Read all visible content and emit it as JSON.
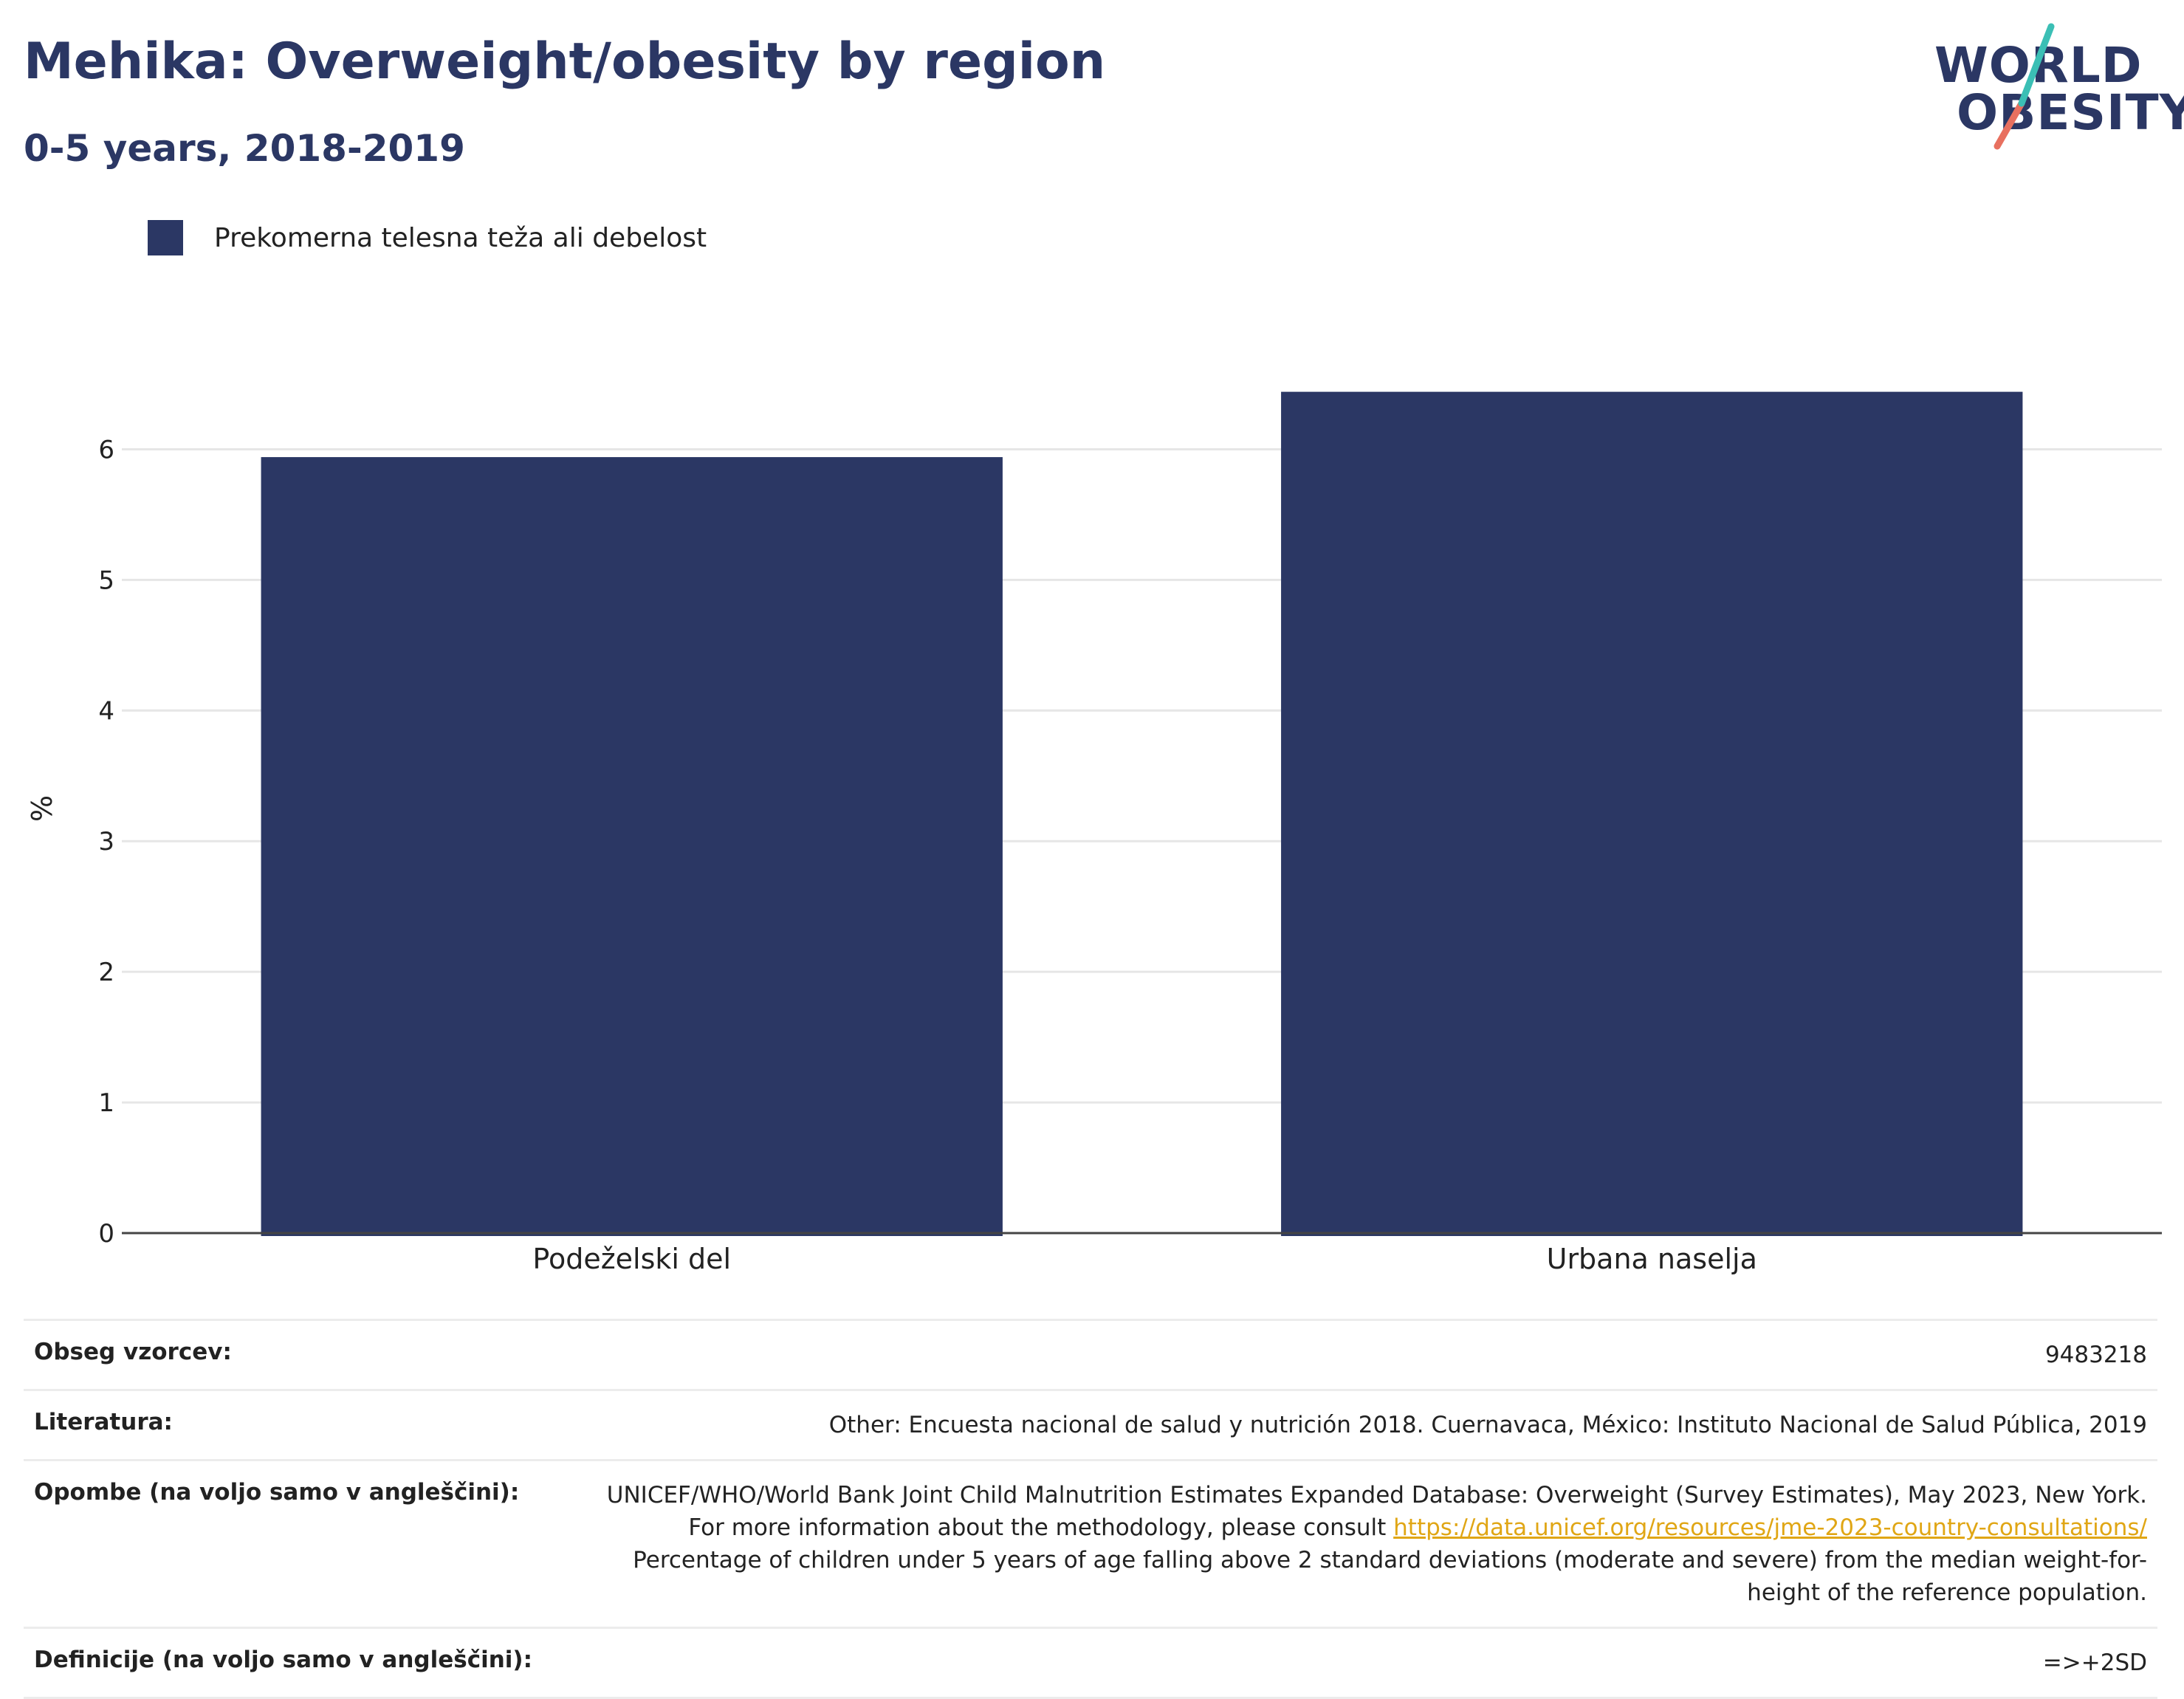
{
  "header": {
    "title": "Mehika: Overweight/obesity by region",
    "subtitle": "0-5 years, 2018-2019"
  },
  "logo": {
    "line1": "WORLD",
    "line2": "OBESITY",
    "colors": {
      "navy": "#2b3764",
      "teal": "#3bbfb5",
      "coral": "#e8705f"
    }
  },
  "legend": {
    "label": "Prekomerna telesna teža ali debelost",
    "color": "#2b3764"
  },
  "chart_data": {
    "type": "bar",
    "categories": [
      "Podeželski del",
      "Urbana naselja"
    ],
    "series": [
      {
        "name": "Prekomerna telesna teža ali debelost",
        "values": [
          5.94,
          6.44
        ],
        "color": "#2b3764"
      }
    ],
    "ylabel": "%",
    "xlabel": "",
    "ylim": [
      0,
      6.5
    ],
    "yticks": [
      0,
      1,
      2,
      3,
      4,
      5,
      6
    ],
    "grid": true,
    "legend_position": "top-left"
  },
  "meta": {
    "sample_label": "Obseg vzorcev:",
    "sample_value": "9483218",
    "literature_label": "Literatura:",
    "literature_value": "Other: Encuesta nacional de salud y nutrición 2018. Cuernavaca, México: Instituto Nacional de Salud Pública, 2019",
    "notes_label": "Opombe (na voljo samo v angleščini):",
    "notes_text_1": "UNICEF/WHO/World Bank Joint Child Malnutrition Estimates Expanded Database: Overweight (Survey Estimates), May 2023, New York. For more information about the methodology, please consult ",
    "notes_link": "https://data.unicef.org/resources/jme-2023-country-consultations/",
    "notes_text_2": "Percentage of children under 5 years of age falling above 2 standard deviations (moderate and severe) from the median weight-for-height of the reference population.",
    "definitions_label": "Definicije (na voljo samo v angleščini):",
    "definitions_value": "=>+2SD"
  }
}
